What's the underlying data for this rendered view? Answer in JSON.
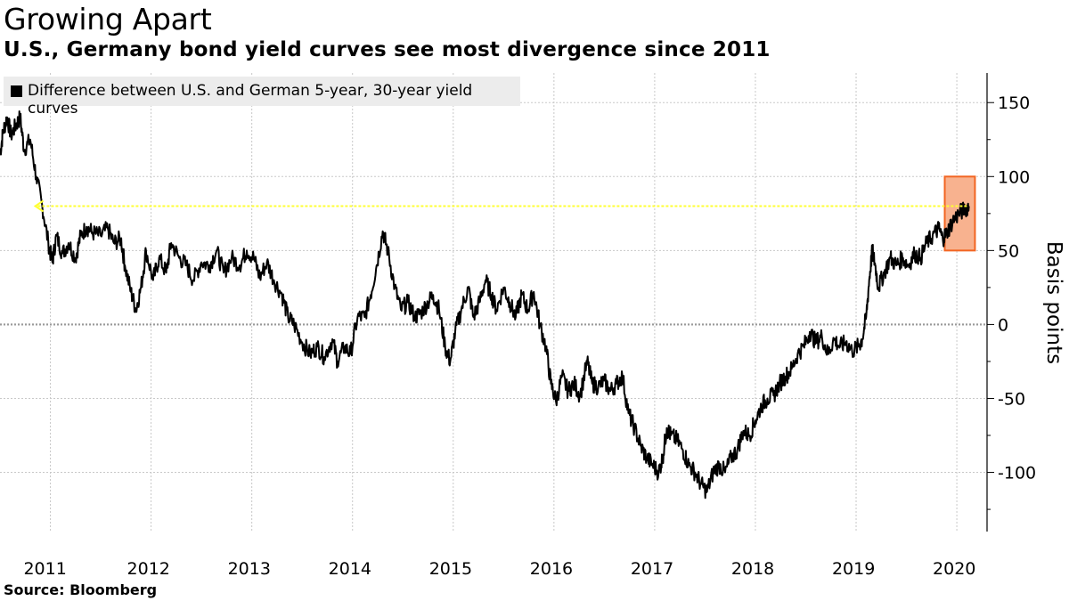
{
  "title": "Growing Apart",
  "subtitle": "U.S., Germany bond yield curves see most divergence since 2011",
  "legend_label": "Difference between U.S. and German 5-year, 30-year yield curves",
  "source": "Source: Bloomberg",
  "colors": {
    "line": "#000000",
    "highlight_fill": "#f8b28f",
    "highlight_stroke": "#f26522",
    "arrow": "#ffff33",
    "grid": "#c8c8c8"
  },
  "chart_data": {
    "type": "line",
    "title": "Growing Apart",
    "subtitle": "U.S., Germany bond yield curves see most divergence since 2011",
    "ylabel": "Basis points",
    "ylim": [
      -140,
      170
    ],
    "yticks": [
      150,
      100,
      50,
      0,
      -50,
      -100
    ],
    "xticks": [
      "2011",
      "2012",
      "2013",
      "2014",
      "2015",
      "2016",
      "2017",
      "2018",
      "2019",
      "2020"
    ],
    "xlim": [
      2011.0,
      2020.8
    ],
    "grid": true,
    "legend_position": "top-left",
    "series": [
      {
        "name": "Difference between U.S. and German 5-year, 30-year yield curves",
        "points": [
          [
            2011.0,
            115
          ],
          [
            2011.03,
            130
          ],
          [
            2011.07,
            140
          ],
          [
            2011.11,
            128
          ],
          [
            2011.16,
            135
          ],
          [
            2011.2,
            140
          ],
          [
            2011.24,
            118
          ],
          [
            2011.3,
            125
          ],
          [
            2011.36,
            100
          ],
          [
            2011.42,
            80
          ],
          [
            2011.48,
            55
          ],
          [
            2011.52,
            42
          ],
          [
            2011.56,
            60
          ],
          [
            2011.62,
            48
          ],
          [
            2011.68,
            55
          ],
          [
            2011.75,
            45
          ],
          [
            2011.8,
            60
          ],
          [
            2011.86,
            66
          ],
          [
            2011.92,
            62
          ],
          [
            2012.0,
            60
          ],
          [
            2012.07,
            65
          ],
          [
            2012.13,
            55
          ],
          [
            2012.2,
            58
          ],
          [
            2012.24,
            40
          ],
          [
            2012.3,
            22
          ],
          [
            2012.35,
            10
          ],
          [
            2012.4,
            25
          ],
          [
            2012.45,
            50
          ],
          [
            2012.52,
            30
          ],
          [
            2012.58,
            45
          ],
          [
            2012.65,
            35
          ],
          [
            2012.7,
            55
          ],
          [
            2012.78,
            45
          ],
          [
            2012.85,
            40
          ],
          [
            2012.92,
            30
          ],
          [
            2013.0,
            42
          ],
          [
            2013.08,
            40
          ],
          [
            2013.15,
            50
          ],
          [
            2013.22,
            35
          ],
          [
            2013.3,
            45
          ],
          [
            2013.38,
            40
          ],
          [
            2013.45,
            50
          ],
          [
            2013.52,
            45
          ],
          [
            2013.58,
            32
          ],
          [
            2013.65,
            42
          ],
          [
            2013.72,
            30
          ],
          [
            2013.8,
            20
          ],
          [
            2013.86,
            5
          ],
          [
            2013.92,
            0
          ],
          [
            2014.0,
            -12
          ],
          [
            2014.08,
            -20
          ],
          [
            2014.15,
            -15
          ],
          [
            2014.22,
            -22
          ],
          [
            2014.3,
            -10
          ],
          [
            2014.35,
            -25
          ],
          [
            2014.42,
            -15
          ],
          [
            2014.48,
            -20
          ],
          [
            2014.55,
            5
          ],
          [
            2014.62,
            5
          ],
          [
            2014.68,
            20
          ],
          [
            2014.74,
            40
          ],
          [
            2014.8,
            63
          ],
          [
            2014.85,
            50
          ],
          [
            2014.92,
            25
          ],
          [
            2014.98,
            10
          ],
          [
            2015.05,
            15
          ],
          [
            2015.12,
            5
          ],
          [
            2015.18,
            8
          ],
          [
            2015.25,
            15
          ],
          [
            2015.3,
            20
          ],
          [
            2015.36,
            10
          ],
          [
            2015.42,
            -15
          ],
          [
            2015.47,
            -25
          ],
          [
            2015.52,
            -5
          ],
          [
            2015.58,
            10
          ],
          [
            2015.65,
            25
          ],
          [
            2015.7,
            5
          ],
          [
            2015.76,
            15
          ],
          [
            2015.82,
            30
          ],
          [
            2015.88,
            20
          ],
          [
            2015.93,
            10
          ],
          [
            2016.0,
            25
          ],
          [
            2016.06,
            15
          ],
          [
            2016.12,
            5
          ],
          [
            2016.18,
            20
          ],
          [
            2016.24,
            10
          ],
          [
            2016.3,
            22
          ],
          [
            2016.36,
            0
          ],
          [
            2016.42,
            -15
          ],
          [
            2016.47,
            -40
          ],
          [
            2016.52,
            -52
          ],
          [
            2016.58,
            -35
          ],
          [
            2016.64,
            -45
          ],
          [
            2016.7,
            -40
          ],
          [
            2016.76,
            -48
          ],
          [
            2016.83,
            -25
          ],
          [
            2016.88,
            -40
          ],
          [
            2016.94,
            -42
          ],
          [
            2017.0,
            -38
          ],
          [
            2017.06,
            -45
          ],
          [
            2017.12,
            -40
          ],
          [
            2017.18,
            -35
          ],
          [
            2017.24,
            -60
          ],
          [
            2017.3,
            -70
          ],
          [
            2017.36,
            -82
          ],
          [
            2017.42,
            -90
          ],
          [
            2017.48,
            -95
          ],
          [
            2017.54,
            -100
          ],
          [
            2017.58,
            -90
          ],
          [
            2017.62,
            -70
          ],
          [
            2017.66,
            -75
          ],
          [
            2017.72,
            -78
          ],
          [
            2017.78,
            -85
          ],
          [
            2017.84,
            -95
          ],
          [
            2017.9,
            -100
          ],
          [
            2017.96,
            -108
          ],
          [
            2018.02,
            -113
          ],
          [
            2018.08,
            -100
          ],
          [
            2018.14,
            -95
          ],
          [
            2018.2,
            -100
          ],
          [
            2018.26,
            -90
          ],
          [
            2018.32,
            -85
          ],
          [
            2018.38,
            -72
          ],
          [
            2018.44,
            -75
          ],
          [
            2018.5,
            -65
          ],
          [
            2018.56,
            -55
          ],
          [
            2018.62,
            -50
          ],
          [
            2018.68,
            -48
          ],
          [
            2018.74,
            -40
          ],
          [
            2018.8,
            -35
          ],
          [
            2018.86,
            -30
          ],
          [
            2018.92,
            -20
          ],
          [
            2018.98,
            -15
          ],
          [
            2019.04,
            -5
          ],
          [
            2019.1,
            -12
          ],
          [
            2019.16,
            -8
          ],
          [
            2019.22,
            -20
          ],
          [
            2019.28,
            -10
          ],
          [
            2019.34,
            -15
          ],
          [
            2019.4,
            -12
          ],
          [
            2019.46,
            -18
          ],
          [
            2019.52,
            -15
          ],
          [
            2019.56,
            -10
          ],
          [
            2019.6,
            5
          ],
          [
            2019.63,
            30
          ],
          [
            2019.66,
            50
          ],
          [
            2019.69,
            40
          ],
          [
            2019.72,
            25
          ],
          [
            2019.78,
            35
          ],
          [
            2019.84,
            45
          ],
          [
            2019.9,
            40
          ],
          [
            2019.96,
            45
          ],
          [
            2020.02,
            40
          ],
          [
            2020.08,
            48
          ],
          [
            2020.14,
            45
          ],
          [
            2020.2,
            55
          ],
          [
            2020.26,
            60
          ],
          [
            2020.32,
            65
          ],
          [
            2020.36,
            58
          ],
          [
            2020.4,
            62
          ],
          [
            2020.46,
            70
          ],
          [
            2020.52,
            75
          ],
          [
            2020.58,
            78
          ],
          [
            2020.62,
            80
          ]
        ]
      }
    ],
    "annotations": [
      {
        "type": "arrow",
        "y": 80,
        "x_from": 2020.6,
        "x_to": 2011.35,
        "color": "#ffff33"
      },
      {
        "type": "highlight_box",
        "x_from": 2020.38,
        "x_to": 2020.68,
        "y_from": 50,
        "y_to": 100,
        "color": "#f8b28f"
      }
    ]
  }
}
